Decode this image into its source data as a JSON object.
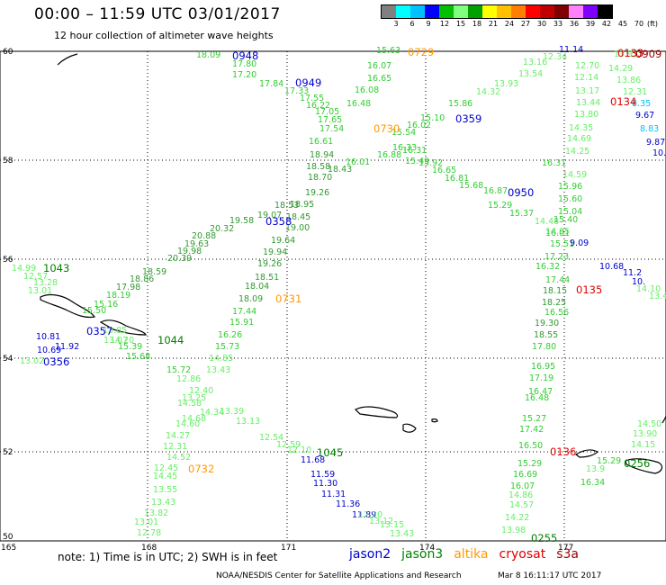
{
  "header": {
    "title": "00:00  –  11:59 UTC 03/01/2017",
    "subtitle": "12 hour collection of altimeter wave heights"
  },
  "scale": {
    "colors": [
      "#808080",
      "#00ffff",
      "#00c0ff",
      "#0000ff",
      "#00c000",
      "#80ff80",
      "#00a000",
      "#ffff00",
      "#ffc000",
      "#ff8000",
      "#ff0000",
      "#c00000",
      "#800000",
      "#ff80ff",
      "#8000ff",
      "#000000"
    ],
    "labels": [
      "3",
      "6",
      "9",
      "12",
      "15",
      "18",
      "21",
      "24",
      "27",
      "30",
      "33",
      "36",
      "39",
      "42",
      "45",
      "70"
    ],
    "unit": "(ft)"
  },
  "axes": {
    "lat_labels": [
      "60",
      "58",
      "56",
      "54",
      "52",
      "50"
    ],
    "lon_labels": [
      "165",
      "168",
      "171",
      "174",
      "177"
    ]
  },
  "colors": {
    "jason2": "#0000cc",
    "jason3": "#008000",
    "altika": "#ff9900",
    "cryosat": "#dd0000",
    "s3a": "#990000",
    "green_light": "#33cc33",
    "green_pale": "#66ee66",
    "green_dark": "#339933"
  },
  "times": [
    {
      "t": "0948",
      "c": "#0000cc"
    },
    {
      "t": "0949",
      "c": "#0000cc"
    },
    {
      "t": "0729",
      "c": "#ff9900"
    },
    {
      "t": "0730",
      "c": "#ff9900"
    },
    {
      "t": "0359",
      "c": "#0000cc"
    },
    {
      "t": "0950",
      "c": "#0000cc"
    },
    {
      "t": "0358",
      "c": "#0000cc"
    },
    {
      "t": "1043",
      "c": "#008000"
    },
    {
      "t": "0731",
      "c": "#ff9900"
    },
    {
      "t": "0357",
      "c": "#0000cc"
    },
    {
      "t": "1044",
      "c": "#008000"
    },
    {
      "t": "0356",
      "c": "#0000cc"
    },
    {
      "t": "0135",
      "c": "#dd0000"
    },
    {
      "t": "0134",
      "c": "#dd0000"
    },
    {
      "t": "0133",
      "c": "#dd0000"
    },
    {
      "t": "0909",
      "c": "#990000"
    },
    {
      "t": "1045",
      "c": "#008000"
    },
    {
      "t": "0732",
      "c": "#ff9900"
    },
    {
      "t": "0136",
      "c": "#dd0000"
    },
    {
      "t": "0256",
      "c": "#008000"
    },
    {
      "t": "0255",
      "c": "#008000"
    }
  ],
  "waves": [
    {
      "v": "18.09",
      "c": "#33cc33"
    },
    {
      "v": "17.80",
      "c": "#33cc33"
    },
    {
      "v": "17.20",
      "c": "#33cc33"
    },
    {
      "v": "17.84",
      "c": "#33cc33"
    },
    {
      "v": "17.33",
      "c": "#33cc33"
    },
    {
      "v": "17.55",
      "c": "#33cc33"
    },
    {
      "v": "16.22",
      "c": "#33cc33"
    },
    {
      "v": "17.05",
      "c": "#33cc33"
    },
    {
      "v": "17.65",
      "c": "#33cc33"
    },
    {
      "v": "17.54",
      "c": "#33cc33"
    },
    {
      "v": "16.61",
      "c": "#33cc33"
    },
    {
      "v": "18.94",
      "c": "#339933"
    },
    {
      "v": "18.58",
      "c": "#339933"
    },
    {
      "v": "18.43",
      "c": "#339933"
    },
    {
      "v": "18.70",
      "c": "#339933"
    },
    {
      "v": "19.26",
      "c": "#339933"
    },
    {
      "v": "18.95",
      "c": "#339933"
    },
    {
      "v": "18.53",
      "c": "#339933"
    },
    {
      "v": "19.07",
      "c": "#339933"
    },
    {
      "v": "19.58",
      "c": "#339933"
    },
    {
      "v": "20.32",
      "c": "#339933"
    },
    {
      "v": "20.88",
      "c": "#339933"
    },
    {
      "v": "19.63",
      "c": "#339933"
    },
    {
      "v": "19.98",
      "c": "#339933"
    },
    {
      "v": "20.39",
      "c": "#339933"
    },
    {
      "v": "18.59",
      "c": "#339933"
    },
    {
      "v": "18.86",
      "c": "#339933"
    },
    {
      "v": "17.98",
      "c": "#339933"
    },
    {
      "v": "18.19",
      "c": "#33cc33"
    },
    {
      "v": "15.16",
      "c": "#33cc33"
    },
    {
      "v": "15.50",
      "c": "#33cc33"
    },
    {
      "v": "15.63",
      "c": "#33cc33"
    },
    {
      "v": "16.07",
      "c": "#33cc33"
    },
    {
      "v": "16.65",
      "c": "#33cc33"
    },
    {
      "v": "16.08",
      "c": "#33cc33"
    },
    {
      "v": "16.48",
      "c": "#33cc33"
    },
    {
      "v": "16.02",
      "c": "#33cc33"
    },
    {
      "v": "15.54",
      "c": "#33cc33"
    },
    {
      "v": "16.33",
      "c": "#33cc33"
    },
    {
      "v": "16.88",
      "c": "#33cc33"
    },
    {
      "v": "16.01",
      "c": "#33cc33"
    },
    {
      "v": "18.45",
      "c": "#339933"
    },
    {
      "v": "19.00",
      "c": "#339933"
    },
    {
      "v": "19.64",
      "c": "#339933"
    },
    {
      "v": "19.94",
      "c": "#339933"
    },
    {
      "v": "19.26",
      "c": "#339933"
    },
    {
      "v": "18.51",
      "c": "#339933"
    },
    {
      "v": "18.04",
      "c": "#339933"
    },
    {
      "v": "18.09",
      "c": "#339933"
    },
    {
      "v": "17.44",
      "c": "#33cc33"
    },
    {
      "v": "15.91",
      "c": "#33cc33"
    },
    {
      "v": "16.26",
      "c": "#33cc33"
    },
    {
      "v": "15.73",
      "c": "#33cc33"
    },
    {
      "v": "14.85",
      "c": "#66ee66"
    },
    {
      "v": "13.43",
      "c": "#66ee66"
    },
    {
      "v": "16.31",
      "c": "#33cc33"
    },
    {
      "v": "15.49",
      "c": "#33cc33"
    },
    {
      "v": "15.92",
      "c": "#33cc33"
    },
    {
      "v": "16.65",
      "c": "#33cc33"
    },
    {
      "v": "16.81",
      "c": "#33cc33"
    },
    {
      "v": "15.68",
      "c": "#33cc33"
    },
    {
      "v": "16.87",
      "c": "#33cc33"
    },
    {
      "v": "15.29",
      "c": "#33cc33"
    },
    {
      "v": "15.37",
      "c": "#33cc33"
    },
    {
      "v": "14.48",
      "c": "#66ee66"
    },
    {
      "v": "14.95",
      "c": "#66ee66"
    },
    {
      "v": "15.10",
      "c": "#33cc33"
    },
    {
      "v": "15.86",
      "c": "#33cc33"
    },
    {
      "v": "14.32",
      "c": "#66ee66"
    },
    {
      "v": "13.93",
      "c": "#66ee66"
    },
    {
      "v": "13.54",
      "c": "#66ee66"
    },
    {
      "v": "13.16",
      "c": "#66ee66"
    },
    {
      "v": "12.34",
      "c": "#66ee66"
    },
    {
      "v": "11.14",
      "c": "#0000cc"
    },
    {
      "v": "12.70",
      "c": "#66ee66"
    },
    {
      "v": "12.14",
      "c": "#66ee66"
    },
    {
      "v": "13.17",
      "c": "#66ee66"
    },
    {
      "v": "13.44",
      "c": "#66ee66"
    },
    {
      "v": "13.80",
      "c": "#66ee66"
    },
    {
      "v": "14.35",
      "c": "#66ee66"
    },
    {
      "v": "14.69",
      "c": "#66ee66"
    },
    {
      "v": "14.25",
      "c": "#66ee66"
    },
    {
      "v": "16.31",
      "c": "#33cc33"
    },
    {
      "v": "14.59",
      "c": "#66ee66"
    },
    {
      "v": "15.96",
      "c": "#33cc33"
    },
    {
      "v": "15.60",
      "c": "#33cc33"
    },
    {
      "v": "15.04",
      "c": "#33cc33"
    },
    {
      "v": "15.40",
      "c": "#33cc33"
    },
    {
      "v": "16.01",
      "c": "#33cc33"
    },
    {
      "v": "15.51",
      "c": "#33cc33"
    },
    {
      "v": "17.23",
      "c": "#33cc33"
    },
    {
      "v": "16.32",
      "c": "#33cc33"
    },
    {
      "v": "17.44",
      "c": "#33cc33"
    },
    {
      "v": "18.15",
      "c": "#339933"
    },
    {
      "v": "18.25",
      "c": "#339933"
    },
    {
      "v": "16.56",
      "c": "#33cc33"
    },
    {
      "v": "19.30",
      "c": "#339933"
    },
    {
      "v": "18.55",
      "c": "#339933"
    },
    {
      "v": "17.80",
      "c": "#33cc33"
    },
    {
      "v": "16.95",
      "c": "#33cc33"
    },
    {
      "v": "17.19",
      "c": "#33cc33"
    },
    {
      "v": "16.47",
      "c": "#33cc33"
    },
    {
      "v": "16.48",
      "c": "#33cc33"
    },
    {
      "v": "15.27",
      "c": "#33cc33"
    },
    {
      "v": "17.42",
      "c": "#33cc33"
    },
    {
      "v": "16.50",
      "c": "#33cc33"
    },
    {
      "v": "15.29",
      "c": "#33cc33"
    },
    {
      "v": "16.69",
      "c": "#33cc33"
    },
    {
      "v": "16.07",
      "c": "#33cc33"
    },
    {
      "v": "14.86",
      "c": "#66ee66"
    },
    {
      "v": "14.57",
      "c": "#66ee66"
    },
    {
      "v": "14.22",
      "c": "#66ee66"
    },
    {
      "v": "13.98",
      "c": "#66ee66"
    },
    {
      "v": "14.29",
      "c": "#66ee66"
    },
    {
      "v": "13.95",
      "c": "#66ee66"
    },
    {
      "v": "13.86",
      "c": "#66ee66"
    },
    {
      "v": "12.31",
      "c": "#66ee66"
    },
    {
      "v": "8.35",
      "c": "#00c0ff"
    },
    {
      "v": "9.67",
      "c": "#0000cc"
    },
    {
      "v": "8.83",
      "c": "#00c0ff"
    },
    {
      "v": "9.87",
      "c": "#0000cc"
    },
    {
      "v": "10.03",
      "c": "#0000cc"
    },
    {
      "v": "9.09",
      "c": "#0000cc"
    },
    {
      "v": "10.68",
      "c": "#0000cc"
    },
    {
      "v": "11.2",
      "c": "#0000cc"
    },
    {
      "v": "10.",
      "c": "#0000cc"
    },
    {
      "v": "14.10",
      "c": "#66ee66"
    },
    {
      "v": "13.41",
      "c": "#66ee66"
    },
    {
      "v": "14.50",
      "c": "#66ee66"
    },
    {
      "v": "13.90",
      "c": "#66ee66"
    },
    {
      "v": "14.15",
      "c": "#66ee66"
    },
    {
      "v": "13.9",
      "c": "#66ee66"
    },
    {
      "v": "15.29",
      "c": "#33cc33"
    },
    {
      "v": "16.34",
      "c": "#33cc33"
    },
    {
      "v": "14.99",
      "c": "#66ee66"
    },
    {
      "v": "12.57",
      "c": "#66ee66"
    },
    {
      "v": "13.28",
      "c": "#66ee66"
    },
    {
      "v": "13.01",
      "c": "#66ee66"
    },
    {
      "v": "13.85",
      "c": "#66ee66"
    },
    {
      "v": "13.07",
      "c": "#66ee66"
    },
    {
      "v": "10.81",
      "c": "#0000cc"
    },
    {
      "v": "11.92",
      "c": "#0000cc"
    },
    {
      "v": "10.69",
      "c": "#0000cc"
    },
    {
      "v": "13.02",
      "c": "#66ee66"
    },
    {
      "v": "14.20",
      "c": "#66ee66"
    },
    {
      "v": "15.39",
      "c": "#33cc33"
    },
    {
      "v": "15.68",
      "c": "#33cc33"
    },
    {
      "v": "15.72",
      "c": "#33cc33"
    },
    {
      "v": "12.86",
      "c": "#66ee66"
    },
    {
      "v": "12.40",
      "c": "#66ee66"
    },
    {
      "v": "13.25",
      "c": "#66ee66"
    },
    {
      "v": "14.58",
      "c": "#66ee66"
    },
    {
      "v": "14.34",
      "c": "#66ee66"
    },
    {
      "v": "14.68",
      "c": "#66ee66"
    },
    {
      "v": "13.39",
      "c": "#66ee66"
    },
    {
      "v": "14.60",
      "c": "#66ee66"
    },
    {
      "v": "13.13",
      "c": "#66ee66"
    },
    {
      "v": "14.27",
      "c": "#66ee66"
    },
    {
      "v": "12.31",
      "c": "#66ee66"
    },
    {
      "v": "14.52",
      "c": "#66ee66"
    },
    {
      "v": "12.45",
      "c": "#66ee66"
    },
    {
      "v": "14.45",
      "c": "#66ee66"
    },
    {
      "v": "13.55",
      "c": "#66ee66"
    },
    {
      "v": "13.43",
      "c": "#66ee66"
    },
    {
      "v": "13.82",
      "c": "#66ee66"
    },
    {
      "v": "13.01",
      "c": "#66ee66"
    },
    {
      "v": "12.78",
      "c": "#66ee66"
    },
    {
      "v": "12.54",
      "c": "#66ee66"
    },
    {
      "v": "12.59",
      "c": "#66ee66"
    },
    {
      "v": "12.10",
      "c": "#66ee66"
    },
    {
      "v": "11.68",
      "c": "#0000cc"
    },
    {
      "v": "11.59",
      "c": "#0000cc"
    },
    {
      "v": "11.30",
      "c": "#0000cc"
    },
    {
      "v": "11.31",
      "c": "#0000cc"
    },
    {
      "v": "11.36",
      "c": "#0000cc"
    },
    {
      "v": "11.89",
      "c": "#0000cc"
    },
    {
      "v": "12.20",
      "c": "#66ee66"
    },
    {
      "v": "13.12",
      "c": "#66ee66"
    },
    {
      "v": "13.15",
      "c": "#66ee66"
    },
    {
      "v": "13.43",
      "c": "#66ee66"
    },
    {
      "v": "13.74",
      "c": "#66ee66"
    },
    {
      "v": "13.67",
      "c": "#66ee66"
    },
    {
      "v": "13.01",
      "c": "#66ee66"
    },
    {
      "v": "13.06",
      "c": "#66ee66"
    }
  ],
  "footer": {
    "note": "note:  1) Time is in UTC;  2) SWH is in feet",
    "sats": [
      {
        "label": "jason2",
        "color": "#0000cc"
      },
      {
        "label": "jason3",
        "color": "#008000"
      },
      {
        "label": "altika",
        "color": "#ff9900"
      },
      {
        "label": "cryosat",
        "color": "#dd0000"
      },
      {
        "label": "s3a",
        "color": "#990000"
      }
    ],
    "credit": "NOAA/NESDIS Center for Satellite Applications and Research",
    "timestamp": "Mar  8 16:11:17 UTC 2017"
  }
}
